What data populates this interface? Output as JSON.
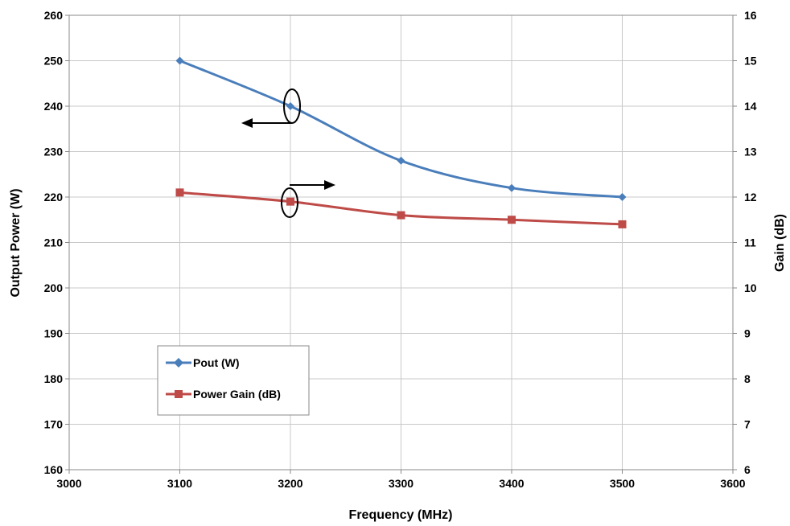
{
  "chart_data": {
    "type": "line",
    "title": "",
    "xlabel": "Frequency (MHz)",
    "ylabel": "Output Power (W)",
    "y2label": "Gain (dB)",
    "xlim": [
      3000,
      3600
    ],
    "ylim": [
      160,
      260
    ],
    "y2lim": [
      6,
      16
    ],
    "x_ticks": [
      "3000",
      "3100",
      "3200",
      "3300",
      "3400",
      "3500",
      "3600"
    ],
    "y_ticks": [
      "160",
      "170",
      "180",
      "190",
      "200",
      "210",
      "220",
      "230",
      "240",
      "250",
      "260"
    ],
    "y2_ticks": [
      "6",
      "7",
      "8",
      "9",
      "10",
      "11",
      "12",
      "13",
      "14",
      "15",
      "16"
    ],
    "grid": true,
    "legend_position": "lower-left",
    "series": [
      {
        "name": "Pout (W)",
        "axis": "left",
        "color": "#4a7ebb",
        "marker": "diamond",
        "x": [
          3100,
          3200,
          3300,
          3400,
          3500
        ],
        "y": [
          250,
          240,
          228,
          222,
          220
        ]
      },
      {
        "name": "Power Gain (dB)",
        "axis": "right",
        "color": "#be4b48",
        "marker": "square",
        "x": [
          3100,
          3200,
          3300,
          3400,
          3500
        ],
        "y": [
          12.1,
          11.9,
          11.6,
          11.5,
          11.4
        ]
      }
    ]
  }
}
